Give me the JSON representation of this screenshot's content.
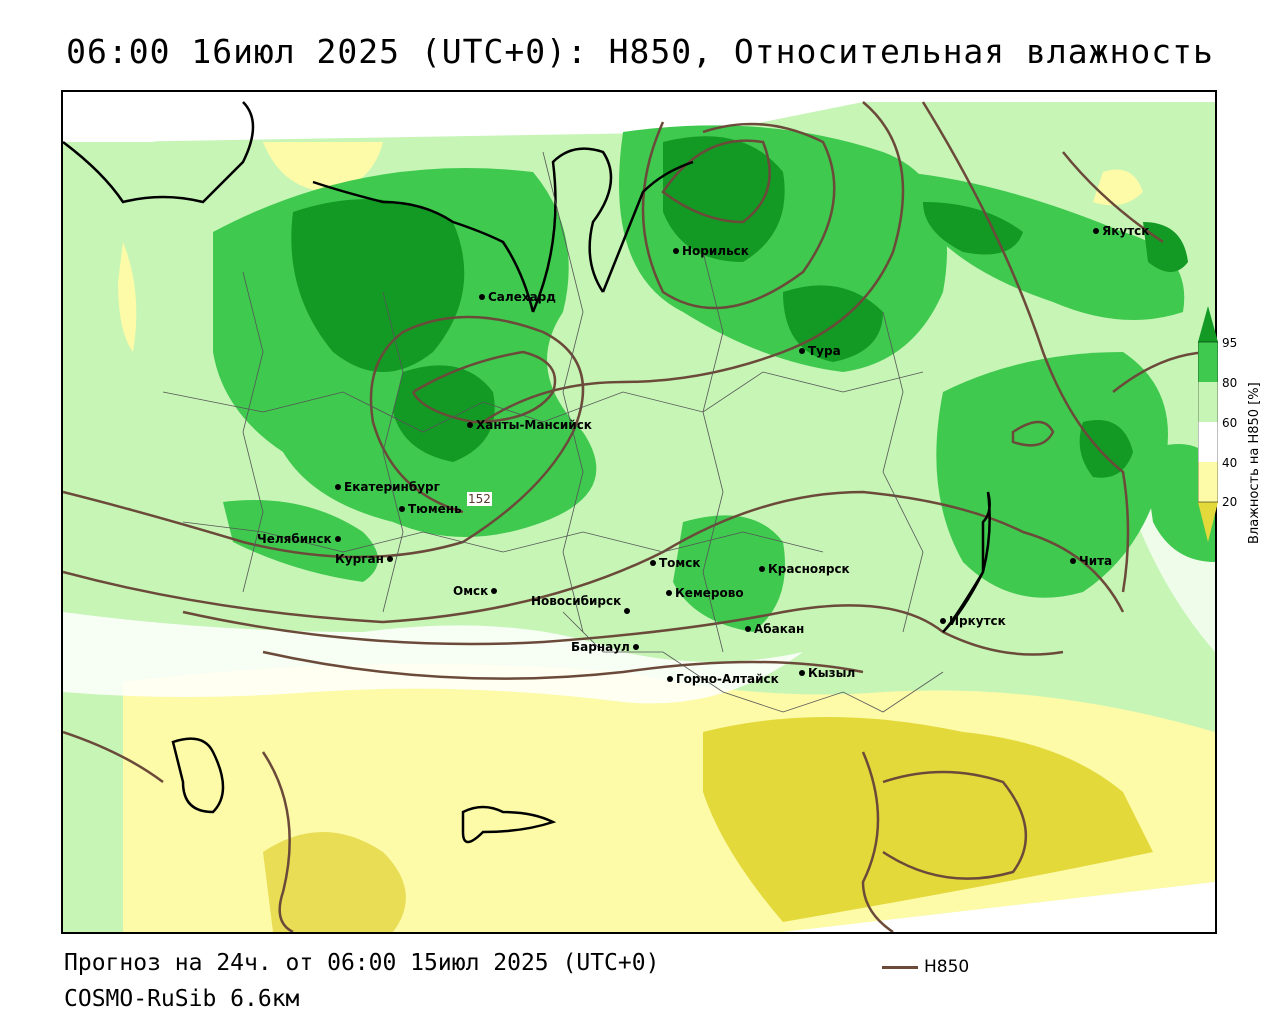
{
  "title": "06:00 16июл 2025 (UTC+0): H850, Относительная влажность",
  "map": {
    "cities": [
      {
        "name": "Якутск"
      },
      {
        "name": "Норильск"
      },
      {
        "name": "Салехард"
      },
      {
        "name": "Тура"
      },
      {
        "name": "Ханты-Мансийск"
      },
      {
        "name": "Екатеринбург"
      },
      {
        "name": "Тюмень"
      },
      {
        "name": "Челябинск"
      },
      {
        "name": "Курган"
      },
      {
        "name": "Омск"
      },
      {
        "name": "Новосибирск"
      },
      {
        "name": "Томск"
      },
      {
        "name": "Кемерово"
      },
      {
        "name": "Красноярск"
      },
      {
        "name": "Абакан"
      },
      {
        "name": "Барнаул"
      },
      {
        "name": "Горно-Алтайск"
      },
      {
        "name": "Кызыл"
      },
      {
        "name": "Иркутск"
      },
      {
        "name": "Чита"
      }
    ],
    "contour_label": "152",
    "colors": {
      "very_dry": "#e3d93a",
      "dry": "#fdfaa8",
      "neutral": "#ffffff",
      "moist": "#c6f5b6",
      "wet": "#3fc94e",
      "very_wet": "#129a24",
      "isoline": "#6b4a3a"
    }
  },
  "legend": {
    "ticks": [
      "95",
      "80",
      "60",
      "40",
      "20"
    ],
    "title": "Влажность на H850 [%]"
  },
  "footer": {
    "forecast": "Прогноз на 24ч. от 06:00 15июл 2025 (UTC+0)",
    "model": "COSMO-RuSib 6.6км",
    "line_legend": "H850"
  }
}
